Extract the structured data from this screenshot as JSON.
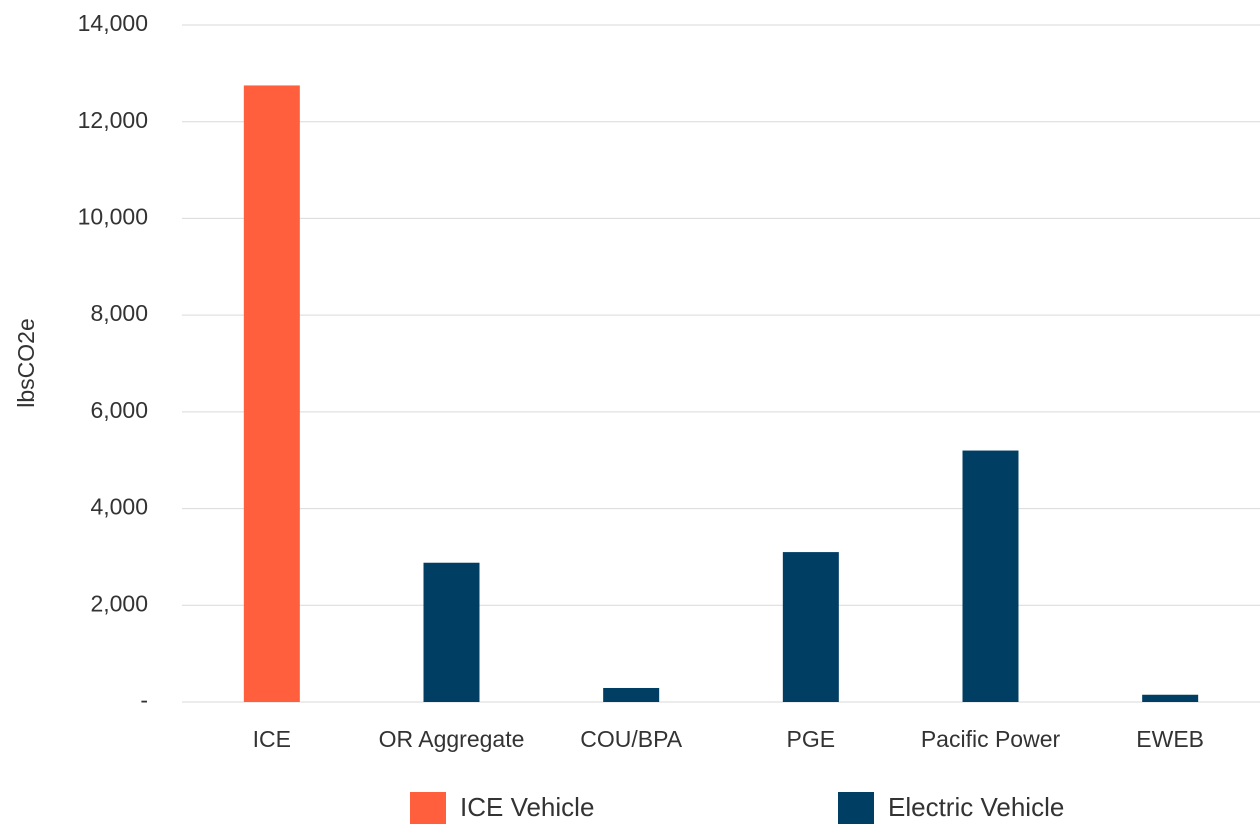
{
  "chart_data": {
    "type": "bar",
    "y_label": "lbsCO2e",
    "categories": [
      "ICE",
      "OR Aggregate",
      "COU/BPA",
      "PGE",
      "Pacific Power",
      "EWEB"
    ],
    "series": [
      {
        "name": "ICE Vehicle",
        "color": "#ff5f3c",
        "values": [
          12750,
          null,
          null,
          null,
          null,
          null
        ]
      },
      {
        "name": "Electric Vehicle",
        "color": "#003f63",
        "values": [
          null,
          2880,
          290,
          3100,
          5200,
          150
        ]
      }
    ],
    "ylim": [
      0,
      14000
    ],
    "yticks": [
      {
        "value": 0,
        "label": "-"
      },
      {
        "value": 2000,
        "label": "2,000"
      },
      {
        "value": 4000,
        "label": "4,000"
      },
      {
        "value": 6000,
        "label": "6,000"
      },
      {
        "value": 8000,
        "label": "8,000"
      },
      {
        "value": 10000,
        "label": "10,000"
      },
      {
        "value": 12000,
        "label": "12,000"
      },
      {
        "value": 14000,
        "label": "14,000"
      }
    ],
    "grid": true,
    "legend": "bottom"
  }
}
